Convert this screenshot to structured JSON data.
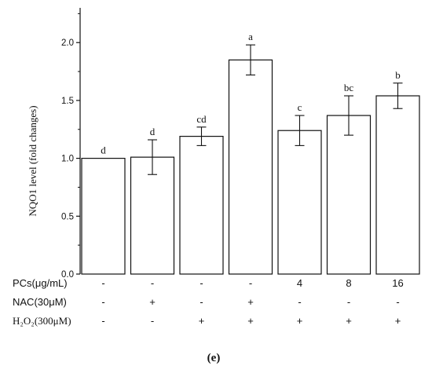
{
  "chart_data": {
    "type": "bar",
    "ylabel": "NQO1 level (fold changes)",
    "ylim": [
      0,
      2.3
    ],
    "yticks": [
      "0.0",
      "0.5",
      "1.0",
      "1.5",
      "2.0"
    ],
    "ytick_values": [
      0,
      0.5,
      1.0,
      1.5,
      2.0
    ],
    "values": [
      1.0,
      1.01,
      1.19,
      1.85,
      1.24,
      1.37,
      1.54
    ],
    "errors": [
      0.0,
      0.15,
      0.08,
      0.13,
      0.13,
      0.17,
      0.11
    ],
    "significance": [
      "d",
      "d",
      "cd",
      "a",
      "c",
      "bc",
      "b"
    ],
    "treatments": [
      {
        "label": "PCs(μg/mL)",
        "values": [
          "-",
          "-",
          "-",
          "-",
          "4",
          "8",
          "16"
        ]
      },
      {
        "label": "NAC(30μM)",
        "values": [
          "-",
          "+",
          "-",
          "+",
          "-",
          "-",
          "-"
        ]
      },
      {
        "label": "H₂O₂(300μM)",
        "values": [
          "-",
          "-",
          "+",
          "+",
          "+",
          "+",
          "+"
        ]
      }
    ],
    "grid": false,
    "caption": "(e)"
  }
}
